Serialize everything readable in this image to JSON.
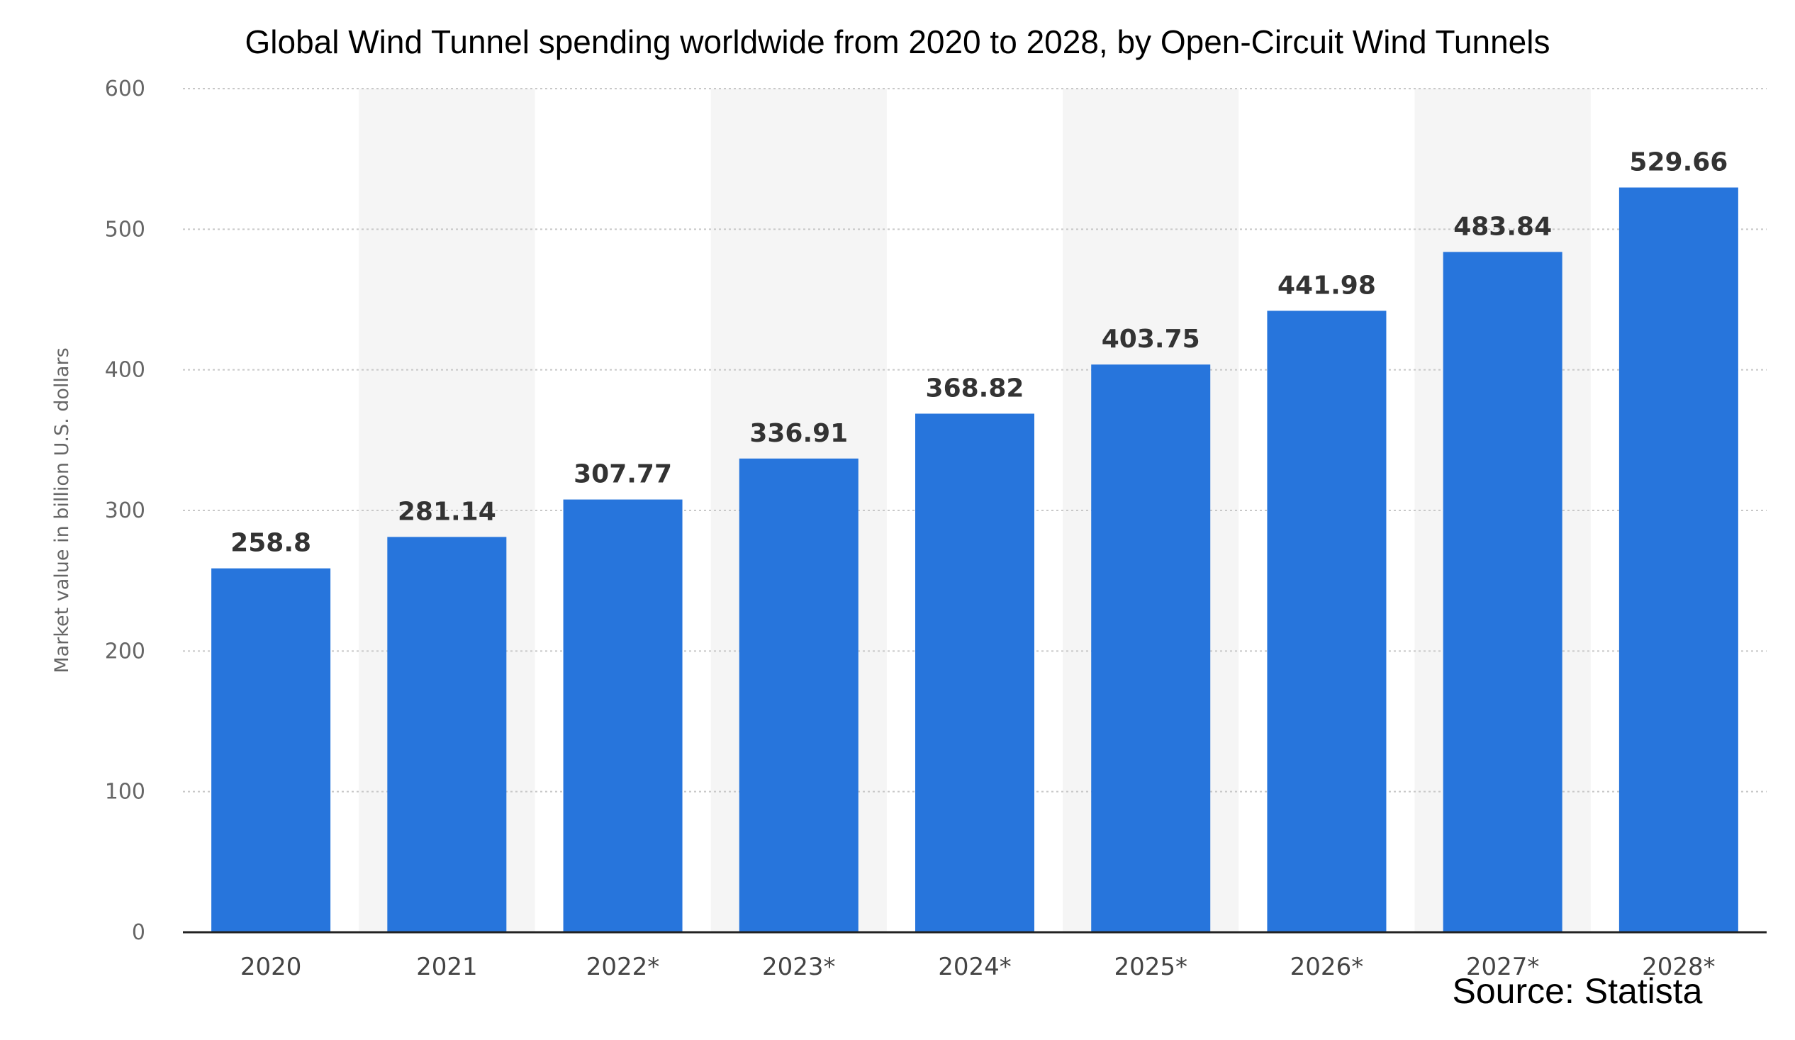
{
  "chart_data": {
    "type": "bar",
    "title": "Global Wind Tunnel spending worldwide from 2020 to 2028, by Open-Circuit Wind Tunnels",
    "ylabel": "Market value in billion U.S. dollars",
    "xlabel": "",
    "categories": [
      "2020",
      "2021",
      "2022*",
      "2023*",
      "2024*",
      "2025*",
      "2026*",
      "2027*",
      "2028*"
    ],
    "values": [
      258.8,
      281.14,
      307.77,
      336.91,
      368.82,
      403.75,
      441.98,
      483.84,
      529.66
    ],
    "value_labels": [
      "258.8",
      "281.14",
      "307.77",
      "336.91",
      "368.82",
      "403.75",
      "441.98",
      "483.84",
      "529.66"
    ],
    "ylim": [
      0,
      600
    ],
    "yticks": [
      "0",
      "100",
      "200",
      "300",
      "400",
      "500",
      "600"
    ],
    "grid": true,
    "bar_color": "#2775dc",
    "band_color": "#f5f5f5",
    "source": "Source: Statista"
  }
}
